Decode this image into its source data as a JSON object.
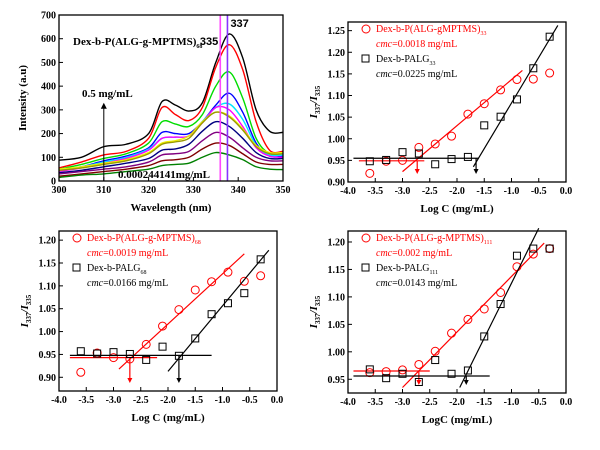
{
  "chart_data": [
    {
      "type": "line",
      "title": "Dex-b-P(ALG-g-MPTMS)68",
      "title_main": "Dex-b-P(ALG-g-MPTMS)",
      "title_sub": "68",
      "xlabel": "Wavelength (nm)",
      "ylabel": "Intensity (a.u)",
      "xlim": [
        300,
        350
      ],
      "ylim": [
        0,
        700
      ],
      "xticks": [
        300,
        310,
        320,
        330,
        340,
        350
      ],
      "yticks": [
        0,
        100,
        200,
        300,
        400,
        500,
        600,
        700
      ],
      "x": [
        300,
        305,
        310,
        315,
        320,
        323,
        326,
        329,
        332,
        335,
        338,
        341,
        344,
        347,
        350
      ],
      "series": [
        {
          "color": "#000000",
          "values": [
            88,
            100,
            145,
            155,
            200,
            335,
            320,
            295,
            330,
            500,
            620,
            520,
            300,
            210,
            205
          ]
        },
        {
          "color": "#ff0000",
          "values": [
            55,
            80,
            110,
            125,
            180,
            310,
            280,
            255,
            310,
            480,
            575,
            470,
            250,
            130,
            125
          ]
        },
        {
          "color": "#00dd00",
          "values": [
            50,
            70,
            95,
            115,
            160,
            250,
            240,
            230,
            280,
            400,
            460,
            350,
            180,
            115,
            115
          ]
        },
        {
          "color": "#0000ff",
          "values": [
            45,
            60,
            85,
            105,
            140,
            205,
            200,
            200,
            250,
            320,
            370,
            290,
            160,
            105,
            105
          ]
        },
        {
          "color": "#00e5ff",
          "values": [
            45,
            60,
            80,
            100,
            135,
            180,
            185,
            190,
            250,
            310,
            325,
            260,
            150,
            110,
            110
          ]
        },
        {
          "color": "#ff00ff",
          "values": [
            40,
            55,
            75,
            95,
            130,
            180,
            185,
            190,
            245,
            310,
            300,
            230,
            140,
            105,
            100
          ]
        },
        {
          "color": "#eeee00",
          "values": [
            50,
            60,
            75,
            90,
            120,
            160,
            170,
            190,
            250,
            290,
            275,
            220,
            150,
            120,
            120
          ]
        },
        {
          "color": "#999900",
          "values": [
            45,
            55,
            70,
            85,
            115,
            155,
            165,
            180,
            245,
            290,
            270,
            215,
            145,
            115,
            115
          ]
        },
        {
          "color": "#000080",
          "values": [
            35,
            45,
            60,
            75,
            95,
            130,
            135,
            155,
            210,
            250,
            230,
            180,
            120,
            95,
            95
          ]
        },
        {
          "color": "#800080",
          "values": [
            30,
            40,
            50,
            60,
            80,
            110,
            115,
            125,
            170,
            205,
            185,
            140,
            100,
            85,
            85
          ]
        },
        {
          "color": "#800000",
          "values": [
            20,
            30,
            40,
            50,
            65,
            85,
            90,
            100,
            135,
            160,
            150,
            115,
            80,
            70,
            70
          ]
        },
        {
          "color": "#008000",
          "values": [
            15,
            25,
            30,
            40,
            50,
            65,
            70,
            75,
            100,
            120,
            110,
            90,
            60,
            50,
            48
          ]
        }
      ],
      "vlines": [
        {
          "x": 336,
          "label": "335",
          "color": "#ff44ff"
        },
        {
          "x": 337.6,
          "label": "337",
          "color": "#8833ff"
        }
      ],
      "annotations": {
        "high": "0.5 mg/mL",
        "low": "0.000244141mg/mL",
        "arrow_x": 310,
        "arrow_from": 0,
        "arrow_to": 330
      }
    },
    {
      "type": "scatter",
      "xlabel": "Log C (mg/mL)",
      "ylabel_main": "I",
      "ylabel_sub1": "337",
      "ylabel_mid": "/I",
      "ylabel_sub2": "335",
      "xlim": [
        -4.0,
        0.0
      ],
      "ylim": [
        0.9,
        1.27
      ],
      "xticks": [
        "-4.0",
        "-3.5",
        "-3.0",
        "-2.5",
        "-2.0",
        "-1.5",
        "-1.0",
        "-0.5",
        "0.0"
      ],
      "yticks": [
        "0.90",
        "0.95",
        "1.00",
        "1.05",
        "1.10",
        "1.15",
        "1.20",
        "1.25"
      ],
      "x": [
        -3.6,
        -3.3,
        -3.0,
        -2.7,
        -2.4,
        -2.1,
        -1.8,
        -1.5,
        -1.2,
        -0.9,
        -0.6,
        -0.3
      ],
      "series": [
        {
          "name": "Dex-b-P(ALG-gMPTMS)",
          "sub": "33",
          "cmc": "=0.0018 mg/mL",
          "marker": "circle",
          "color": "#ff0000",
          "values": [
            0.92,
            0.948,
            0.95,
            0.98,
            0.988,
            1.006,
            1.057,
            1.081,
            1.113,
            1.137,
            1.138,
            1.152
          ],
          "fit_flat": {
            "x": [
              -3.8,
              -2.6
            ],
            "y": [
              0.949,
              0.949
            ]
          },
          "fit_slope": {
            "x": [
              -3.0,
              -0.8
            ],
            "y": [
              0.924,
              1.158
            ]
          },
          "cmc_logc": -2.73
        },
        {
          "name": "Dex-b-PALG",
          "sub": "33",
          "cmc": "=0.0225 mg/mL",
          "marker": "square",
          "color": "#000000",
          "values": [
            0.948,
            0.951,
            0.969,
            0.966,
            0.941,
            0.953,
            0.958,
            1.031,
            1.051,
            1.091,
            1.163,
            1.236
          ],
          "fit_flat": {
            "x": [
              -3.9,
              -1.6
            ],
            "y": [
              0.955,
              0.955
            ]
          },
          "fit_slope": {
            "x": [
              -1.7,
              -0.15
            ],
            "y": [
              0.935,
              1.262
            ]
          },
          "cmc_logc": -1.65
        }
      ]
    },
    {
      "type": "scatter",
      "xlabel": "Log C (mg/mL)",
      "ylabel_main": "I",
      "ylabel_sub1": "337",
      "ylabel_mid": "/I",
      "ylabel_sub2": "335",
      "xlim": [
        -4.0,
        0.0
      ],
      "ylim": [
        0.87,
        1.22
      ],
      "xticks": [
        "-4.0",
        "-3.5",
        "-3.0",
        "-2.5",
        "-2.0",
        "-1.5",
        "-1.0",
        "-0.5",
        "0.0"
      ],
      "yticks": [
        "0.90",
        "0.95",
        "1.00",
        "1.05",
        "1.10",
        "1.15",
        "1.20"
      ],
      "x": [
        -3.6,
        -3.3,
        -3.0,
        -2.7,
        -2.4,
        -2.1,
        -1.8,
        -1.5,
        -1.2,
        -0.9,
        -0.6,
        -0.3
      ],
      "series": [
        {
          "name": "Dex-b-P(ALG-g-MPTMS)",
          "sub": "68",
          "cmc": "=0.0019 mg/mL",
          "marker": "circle",
          "color": "#ff0000",
          "values": [
            0.911,
            0.953,
            0.943,
            0.94,
            0.972,
            1.012,
            1.048,
            1.091,
            1.109,
            1.13,
            1.11,
            1.122
          ],
          "fit_flat": {
            "x": [
              -3.8,
              -2.2
            ],
            "y": [
              0.943,
              0.943
            ]
          },
          "fit_slope": {
            "x": [
              -2.9,
              -0.6
            ],
            "y": [
              0.918,
              1.17
            ]
          },
          "cmc_logc": -2.7
        },
        {
          "name": "Dex-b-PALG",
          "sub": "68",
          "cmc": "=0.0166 mg/mL",
          "marker": "square",
          "color": "#000000",
          "values": [
            0.957,
            0.952,
            0.955,
            0.951,
            0.938,
            0.967,
            0.947,
            0.985,
            1.038,
            1.062,
            1.084,
            1.158
          ],
          "fit_flat": {
            "x": [
              -3.8,
              -1.2
            ],
            "y": [
              0.948,
              0.948
            ]
          },
          "fit_slope": {
            "x": [
              -2.0,
              -0.15
            ],
            "y": [
              0.913,
              1.178
            ]
          },
          "cmc_logc": -1.8
        }
      ]
    },
    {
      "type": "scatter",
      "xlabel": "LogC (mg/mL)",
      "ylabel_main": "I",
      "ylabel_sub1": "337",
      "ylabel_mid": "/I",
      "ylabel_sub2": "335",
      "xlim": [
        -4.0,
        0.0
      ],
      "ylim": [
        0.925,
        1.22
      ],
      "xticks": [
        "-4.0",
        "-3.5",
        "-3.0",
        "-2.5",
        "-2.0",
        "-1.5",
        "-1.0",
        "-0.5",
        "0.0"
      ],
      "yticks": [
        "0.95",
        "1.00",
        "1.05",
        "1.10",
        "1.15",
        "1.20"
      ],
      "x": [
        -3.6,
        -3.3,
        -3.0,
        -2.7,
        -2.4,
        -2.1,
        -1.8,
        -1.5,
        -1.2,
        -0.9,
        -0.6,
        -0.3
      ],
      "series": [
        {
          "name": "Dex-b-P(ALG-g-MPTMS)",
          "sub": "111",
          "cmc": "=0.002 mg/mL",
          "marker": "circle",
          "color": "#ff0000",
          "values": [
            0.962,
            0.964,
            0.967,
            0.977,
            1.001,
            1.034,
            1.059,
            1.078,
            1.108,
            1.155,
            1.178,
            1.188
          ],
          "fit_flat": {
            "x": [
              -3.9,
              -2.5
            ],
            "y": [
              0.965,
              0.965
            ]
          },
          "fit_slope": {
            "x": [
              -3.0,
              -0.4
            ],
            "y": [
              0.935,
              1.198
            ]
          },
          "cmc_logc": -2.7
        },
        {
          "name": "Dex-b-PALG",
          "sub": "111",
          "cmc": "=0.0143 mg/mL",
          "marker": "square",
          "color": "#000000",
          "values": [
            0.968,
            0.952,
            0.96,
            0.945,
            0.985,
            0.96,
            0.966,
            1.028,
            1.087,
            1.175,
            1.188,
            1.188
          ],
          "fit_flat": {
            "x": [
              -3.9,
              -1.4
            ],
            "y": [
              0.956,
              0.956
            ]
          },
          "fit_slope": {
            "x": [
              -1.95,
              -0.5
            ],
            "y": [
              0.935,
              1.225
            ]
          },
          "cmc_logc": -1.83
        }
      ]
    }
  ],
  "cmc_label": "cmc"
}
